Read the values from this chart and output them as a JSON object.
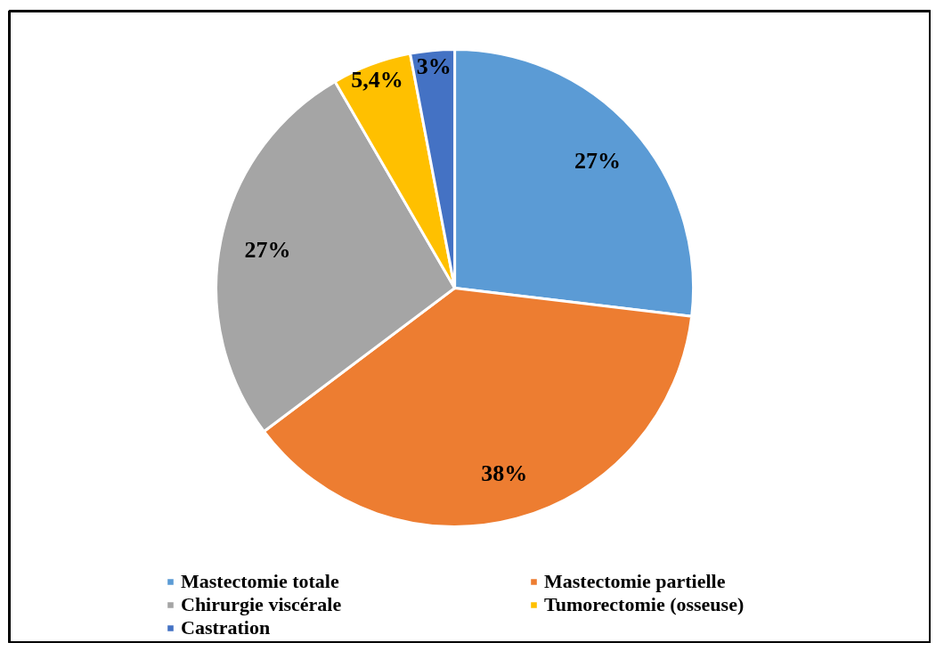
{
  "chart_data": {
    "type": "pie",
    "categories": [
      "Mastectomie totale",
      "Mastectomie partielle",
      "Chirurgie viscérale",
      "Tumorectomie (osseuse)",
      "Castration"
    ],
    "values": [
      27,
      38,
      27,
      5.4,
      3
    ],
    "value_labels": [
      "27%",
      "38%",
      "27%",
      "5,4%",
      "3%"
    ],
    "colors": [
      "#5b9bd5",
      "#ed7d31",
      "#a5a5a5",
      "#ffc000",
      "#4472c4"
    ],
    "legend": "bottom"
  }
}
